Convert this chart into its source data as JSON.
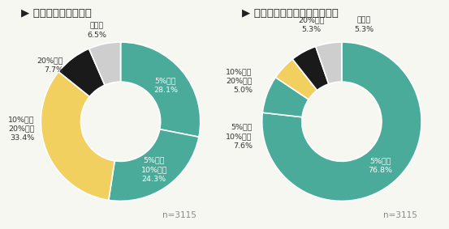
{
  "chart1": {
    "title": "高ストレス者の割合",
    "slices": [
      28.1,
      24.3,
      33.4,
      7.7,
      6.5
    ],
    "colors": [
      "#4aab9b",
      "#4aab9b",
      "#f2d060",
      "#1a1a1a",
      "#cecece"
    ],
    "n": "n=3115"
  },
  "chart2": {
    "title": "面接指導を申し出る者の割合",
    "slices": [
      76.8,
      7.6,
      5.0,
      5.3,
      5.3
    ],
    "colors": [
      "#4aab9b",
      "#4aab9b",
      "#f2d060",
      "#1a1a1a",
      "#cecece"
    ],
    "n": "n=3115"
  },
  "teal": "#4aab9b",
  "yellow": "#f2d060",
  "black_slice": "#1a1a1a",
  "gray": "#cecece",
  "bg_color": "#f7f7f2",
  "title_color": "#222222",
  "arrow_color": "#4aab9b",
  "label_color": "#333333",
  "white": "#ffffff",
  "n_color": "#888888",
  "title_fontsize": 9.5,
  "label_fontsize": 6.8,
  "n_fontsize": 7.5,
  "donut_width": 0.5
}
